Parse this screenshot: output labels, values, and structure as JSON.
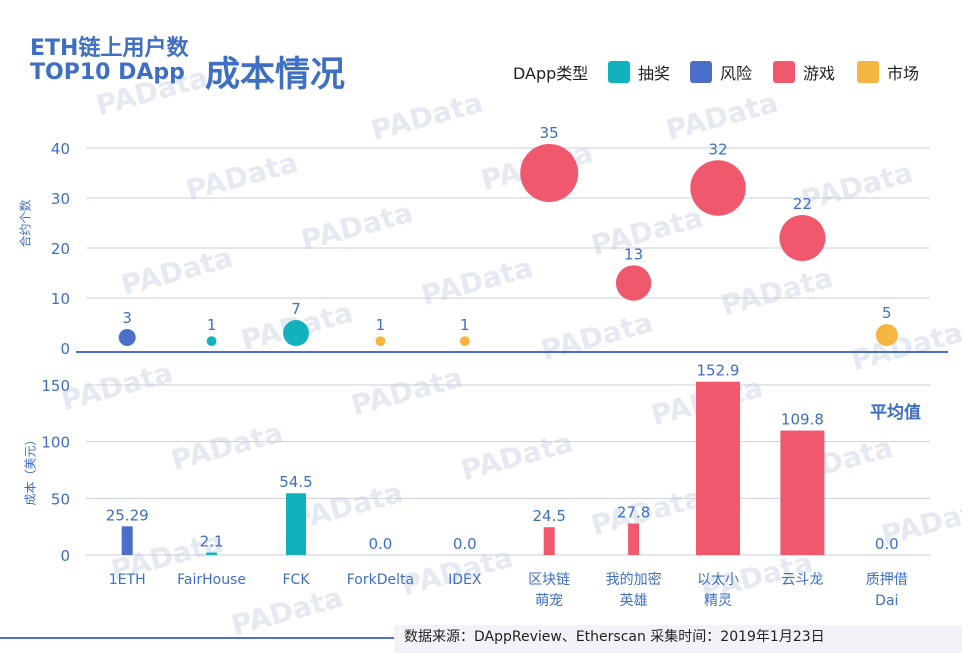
{
  "title": {
    "line1": "ETH链上用户数",
    "line2": "TOP10 DApp",
    "line3": "成本情况"
  },
  "legend": {
    "title": "DApp类型",
    "items": [
      {
        "label": "抽奖",
        "color": "#12b1be"
      },
      {
        "label": "风险",
        "color": "#4a6fc9"
      },
      {
        "label": "游戏",
        "color": "#f0586e"
      },
      {
        "label": "市场",
        "color": "#f5b53f"
      }
    ]
  },
  "watermark": "PAData",
  "footer": "数据来源：DAppReview、Etherscan    采集时间：2019年1月23日",
  "chart_data": {
    "type": "bubble+bar",
    "categories": [
      "1ETH",
      "FairHouse",
      "FCK",
      "ForkDelta",
      "IDEX",
      "区块链\n萌宠",
      "我的加密\n英雄",
      "以太小\n精灵",
      "云斗龙",
      "质押借\nDai"
    ],
    "category_types": [
      "风险",
      "抽奖",
      "抽奖",
      "市场",
      "市场",
      "游戏",
      "游戏",
      "游戏",
      "游戏",
      "市场"
    ],
    "contracts": {
      "ylabel": "合约个数",
      "yticks": [
        0,
        10,
        20,
        30,
        40
      ],
      "ylim": [
        0,
        40
      ],
      "values": [
        3,
        1,
        7,
        1,
        1,
        35,
        13,
        32,
        22,
        5
      ]
    },
    "cost": {
      "ylabel": "成本（美元）",
      "yticks": [
        0,
        50,
        100,
        150
      ],
      "ylim": [
        0,
        160
      ],
      "values": [
        25.29,
        2.1,
        54.5,
        0.0,
        0.0,
        24.5,
        27.8,
        152.9,
        109.8,
        0.0
      ],
      "labels": [
        "25.29",
        "2.1",
        "54.5",
        "0.0",
        "0.0",
        "24.5",
        "27.8",
        "152.9",
        "109.8",
        "0.0"
      ],
      "annotation": "平均值"
    }
  }
}
